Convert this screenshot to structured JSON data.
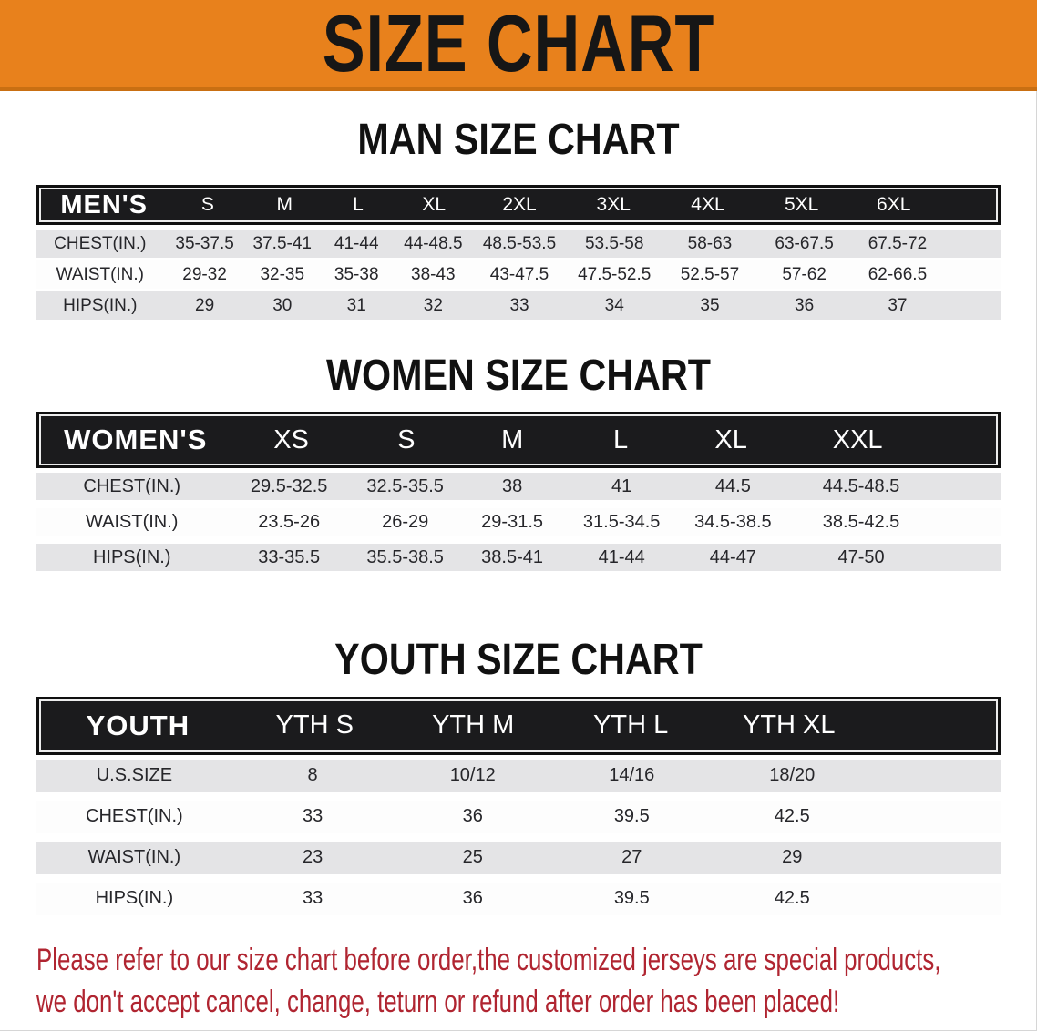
{
  "banner": {
    "title": "SIZE CHART"
  },
  "men": {
    "title": "MAN SIZE CHART",
    "header": [
      "MEN'S",
      "S",
      "M",
      "L",
      "XL",
      "2XL",
      "3XL",
      "4XL",
      "5XL",
      "6XL"
    ],
    "rows": [
      [
        "CHEST(IN.)",
        "35-37.5",
        "37.5-41",
        "41-44",
        "44-48.5",
        "48.5-53.5",
        "53.5-58",
        "58-63",
        "63-67.5",
        "67.5-72"
      ],
      [
        "WAIST(IN.)",
        "29-32",
        "32-35",
        "35-38",
        "38-43",
        "43-47.5",
        "47.5-52.5",
        "52.5-57",
        "57-62",
        "62-66.5"
      ],
      [
        "HIPS(IN.)",
        "29",
        "30",
        "31",
        "32",
        "33",
        "34",
        "35",
        "36",
        "37"
      ]
    ]
  },
  "women": {
    "title": "WOMEN SIZE CHART",
    "header": [
      "WOMEN'S",
      "XS",
      "S",
      "M",
      "L",
      "XL",
      "XXL"
    ],
    "rows": [
      [
        "CHEST(IN.)",
        "29.5-32.5",
        "32.5-35.5",
        "38",
        "41",
        "44.5",
        "44.5-48.5"
      ],
      [
        "WAIST(IN.)",
        "23.5-26",
        "26-29",
        "29-31.5",
        "31.5-34.5",
        "34.5-38.5",
        "38.5-42.5"
      ],
      [
        "HIPS(IN.)",
        "33-35.5",
        "35.5-38.5",
        "38.5-41",
        "41-44",
        "44-47",
        "47-50"
      ]
    ]
  },
  "youth": {
    "title": "YOUTH SIZE CHART",
    "header": [
      "YOUTH",
      "YTH S",
      "YTH M",
      "YTH L",
      "YTH XL"
    ],
    "rows": [
      [
        "U.S.SIZE",
        "8",
        "10/12",
        "14/16",
        "18/20"
      ],
      [
        "CHEST(IN.)",
        "33",
        "36",
        "39.5",
        "42.5"
      ],
      [
        "WAIST(IN.)",
        "23",
        "25",
        "27",
        "29"
      ],
      [
        "HIPS(IN.)",
        "33",
        "36",
        "39.5",
        "42.5"
      ]
    ]
  },
  "disclaimer": {
    "line1": "Please refer to our size chart before order,the customized jerseys are special products,",
    "line2": "we don't accept cancel, change, teturn or refund after order has been placed!"
  },
  "colors": {
    "banner_bg": "#e8811c",
    "banner_border": "#c96f12",
    "banner_text": "#161616",
    "table_header_bg": "#1b1b1d",
    "table_header_text": "#ffffff",
    "row_gray": "#e4e4e6",
    "row_white": "#fdfdfd",
    "body_text": "#26262a",
    "disclaimer_red": "#b02531"
  }
}
